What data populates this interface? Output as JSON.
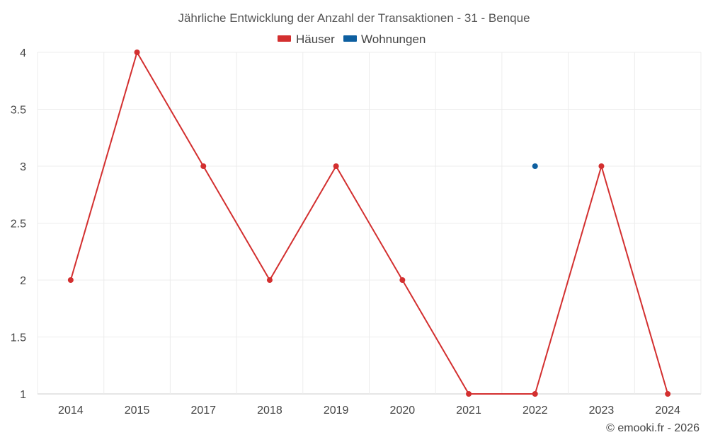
{
  "chart_data": {
    "type": "line",
    "title": "Jährliche Entwicklung der Anzahl der Transaktionen - 31 - Benque",
    "categories": [
      "2014",
      "2015",
      "2017",
      "2018",
      "2019",
      "2020",
      "2021",
      "2022",
      "2023",
      "2024"
    ],
    "series": [
      {
        "name": "Häuser",
        "color": "#d32f2f",
        "values": [
          2,
          4,
          3,
          2,
          3,
          2,
          1,
          1,
          3,
          1
        ]
      },
      {
        "name": "Wohnungen",
        "color": "#0d5fa0",
        "values": [
          null,
          null,
          null,
          null,
          null,
          null,
          null,
          3,
          null,
          null
        ]
      }
    ],
    "ylim": [
      1,
      4
    ],
    "yticks": [
      "1",
      "1.5",
      "2",
      "2.5",
      "3",
      "3.5",
      "4"
    ],
    "xlabel": "",
    "ylabel": "",
    "grid": true,
    "legend_position": "top-center"
  },
  "credit": "© emooki.fr - 2026"
}
